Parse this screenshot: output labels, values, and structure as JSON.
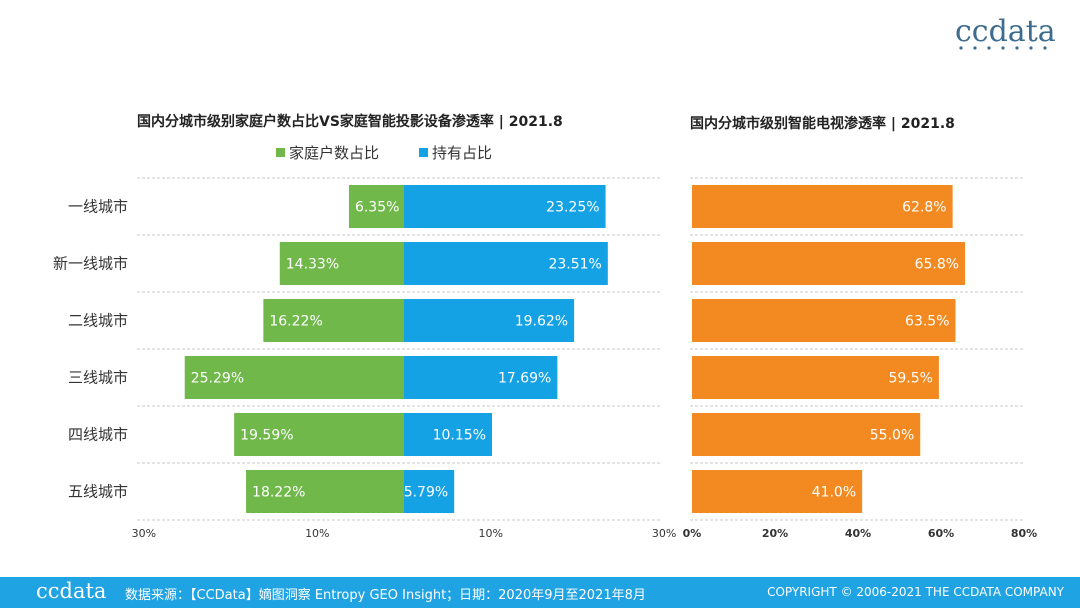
{
  "brand": {
    "logo_text": "ccdata"
  },
  "footer": {
    "logo_text": "ccdata",
    "source": "数据来源：【CCData】嫡图洞察 Entropy GEO Insight；日期：2020年9月至2021年8月",
    "copyright": "COPYRIGHT © 2006-2021 THE CCDATA COMPANY"
  },
  "colors": {
    "green": "#70b84a",
    "blue": "#14a2e5",
    "orange": "#f28a21",
    "footer": "#1fa3e3",
    "grid": "#c8c8c8"
  },
  "chart_data": [
    {
      "type": "bar",
      "orientation": "diverging-horizontal",
      "title": "国内分城市级别家庭户数占比VS家庭智能投影设备渗透率 | 2021.8",
      "categories": [
        "一线城市",
        "新一线城市",
        "二线城市",
        "三线城市",
        "四线城市",
        "五线城市"
      ],
      "series": [
        {
          "name": "家庭户数占比",
          "side": "left",
          "color": "#70b84a",
          "values": [
            6.35,
            14.33,
            16.22,
            25.29,
            19.59,
            18.22
          ],
          "labels": [
            "6.35%",
            "14.33%",
            "16.22%",
            "25.29%",
            "19.59%",
            "18.22%"
          ]
        },
        {
          "name": "持有占比",
          "side": "right",
          "color": "#14a2e5",
          "values": [
            23.25,
            23.51,
            19.62,
            17.69,
            10.15,
            5.79
          ],
          "labels": [
            "23.25%",
            "23.51%",
            "19.62%",
            "17.69%",
            "10.15%",
            "5.79%"
          ]
        }
      ],
      "ticks": [
        {
          "value": -30,
          "label": "30%"
        },
        {
          "value": -10,
          "label": "10%"
        },
        {
          "value": 10,
          "label": "10%"
        },
        {
          "value": 30,
          "label": "30%"
        }
      ],
      "xlim": [
        -30,
        30
      ],
      "legend": "top",
      "grid": true
    },
    {
      "type": "bar",
      "orientation": "horizontal",
      "title": "国内分城市级别智能电视渗透率 | 2021.8",
      "categories": [
        "一线城市",
        "新一线城市",
        "二线城市",
        "三线城市",
        "四线城市",
        "五线城市"
      ],
      "series": [
        {
          "color": "#f28a21",
          "values": [
            62.8,
            65.8,
            63.5,
            59.5,
            55.0,
            41.0
          ],
          "labels": [
            "62.8%",
            "65.8%",
            "63.5%",
            "59.5%",
            "55.0%",
            "41.0%"
          ]
        }
      ],
      "ticks": [
        {
          "value": 0,
          "label": "0%"
        },
        {
          "value": 20,
          "label": "20%"
        },
        {
          "value": 40,
          "label": "40%"
        },
        {
          "value": 60,
          "label": "60%"
        },
        {
          "value": 80,
          "label": "80%"
        }
      ],
      "xlim": [
        0,
        80
      ],
      "grid": true
    }
  ]
}
